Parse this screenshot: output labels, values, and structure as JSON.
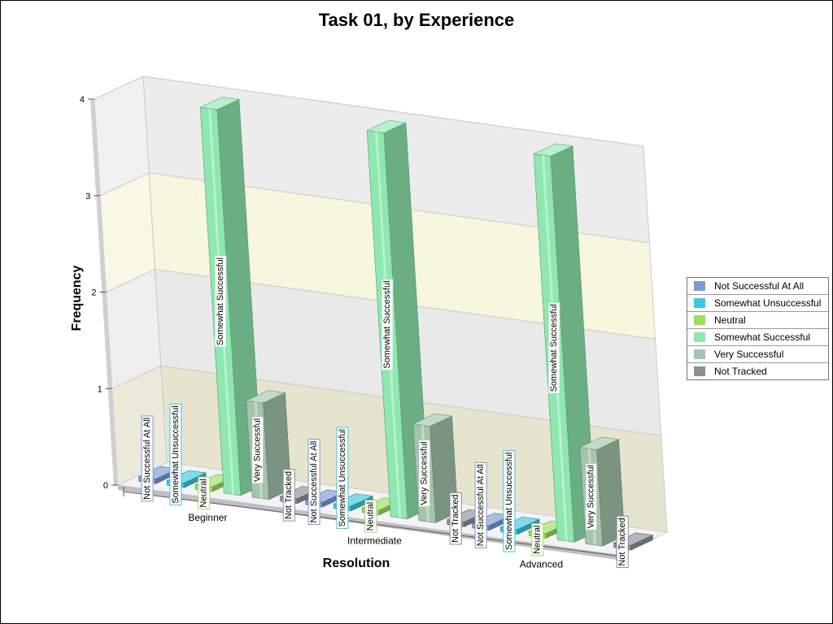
{
  "chart_data": {
    "type": "bar",
    "title": "Task 01, by Experience",
    "xlabel": "Resolution",
    "ylabel": "Frequency",
    "ylim": [
      0,
      4
    ],
    "yticks": [
      "0",
      "1",
      "2",
      "3",
      "4"
    ],
    "categories": [
      "Beginner",
      "Intermediate",
      "Advanced"
    ],
    "series": [
      {
        "name": "Not Successful At All",
        "color": "#7b9ad6",
        "values": [
          0,
          0,
          0
        ]
      },
      {
        "name": "Somewhat Unsuccessful",
        "color": "#3cc8dc",
        "values": [
          0,
          0,
          0
        ]
      },
      {
        "name": "Neutral",
        "color": "#9ae05c",
        "values": [
          0,
          0,
          0
        ]
      },
      {
        "name": "Somewhat Successful",
        "color": "#8ee8b0",
        "values": [
          4,
          4,
          4
        ]
      },
      {
        "name": "Very Successful",
        "color": "#a4c4ac",
        "values": [
          1,
          1,
          1
        ]
      },
      {
        "name": "Not Tracked",
        "color": "#8a9099",
        "values": [
          0,
          0,
          0
        ]
      }
    ],
    "legend_position": "right",
    "grid": true,
    "chart_style": "3d"
  }
}
